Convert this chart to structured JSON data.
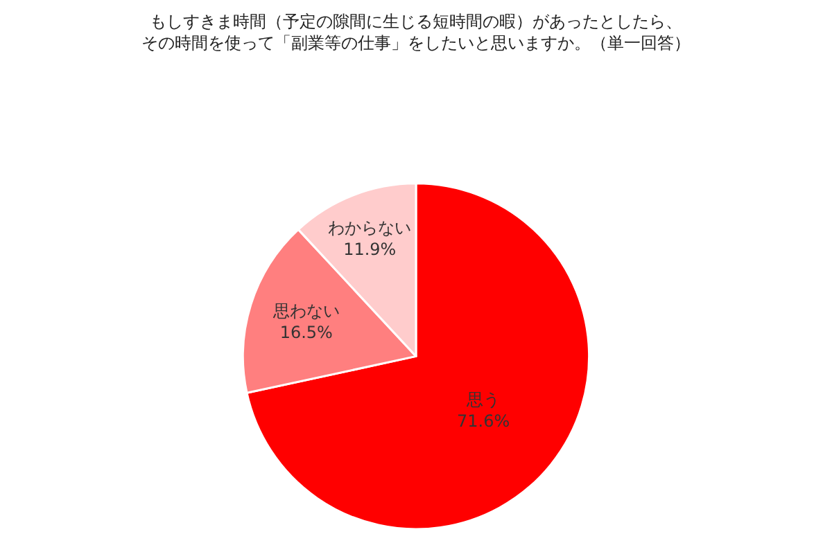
{
  "chart_data": {
    "type": "pie",
    "title": "もしすきま時間（予定の隙間に生じる短時間の暇）があったとしたら、その時間を使って「副業等の仕事」をしたいと思いますか。（単一回答）",
    "categories": [
      "思う",
      "思わない",
      "わからない"
    ],
    "values": [
      71.6,
      16.5,
      11.9
    ],
    "value_labels": [
      "71.6%",
      "16.5%",
      "11.9%"
    ],
    "colors": [
      "#ff0000",
      "#ff7f7f",
      "#ffcccc"
    ],
    "legend": false
  }
}
